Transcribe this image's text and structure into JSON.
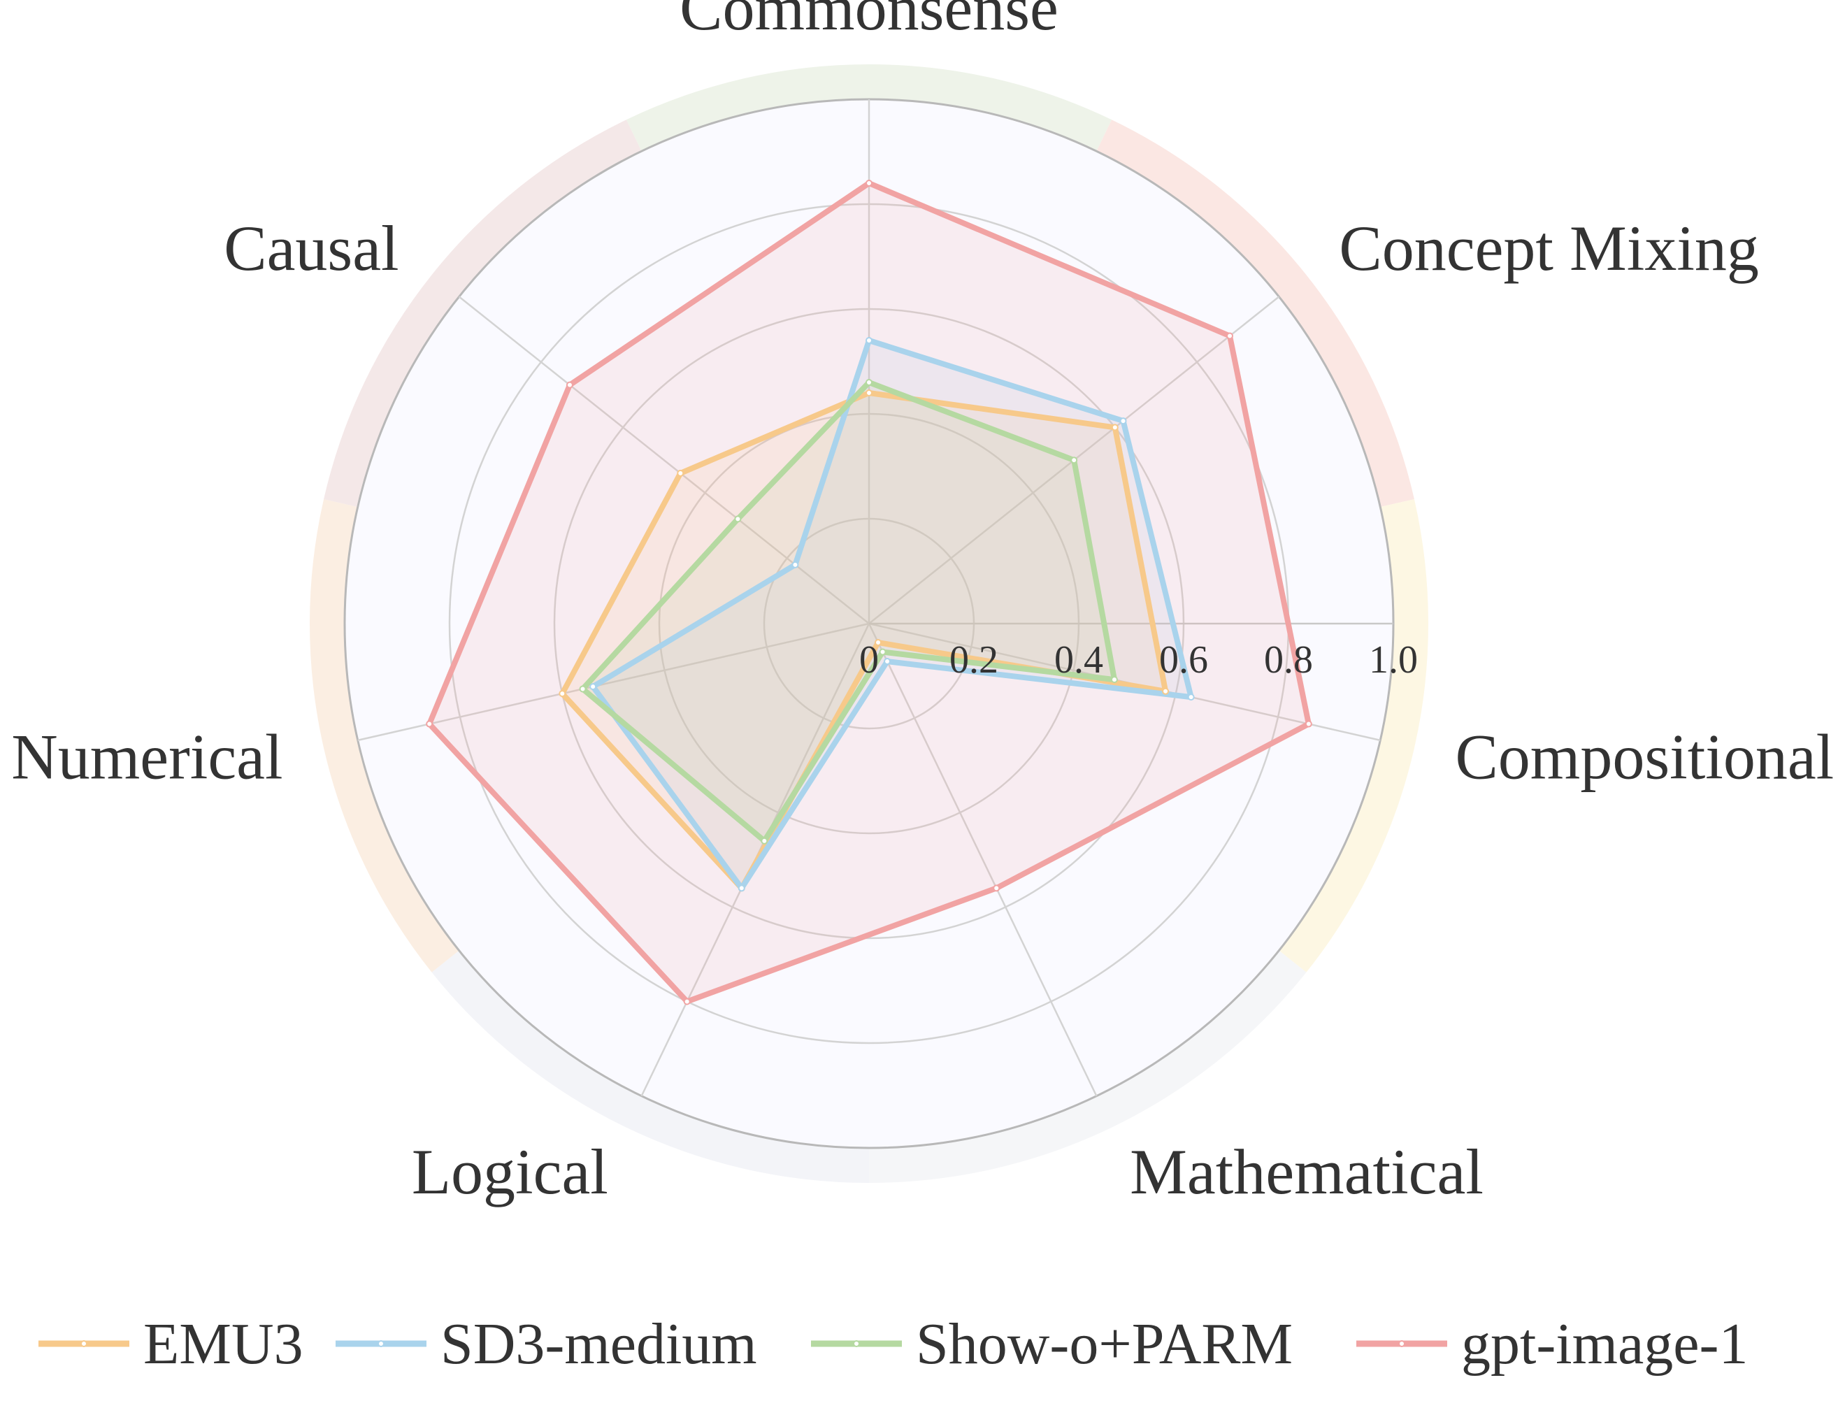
{
  "chart_data": {
    "type": "radar",
    "title": "",
    "axes": [
      "Commonsense",
      "Concept Mixing",
      "Compositional",
      "Mathematical",
      "Logical",
      "Numerical",
      "Causal"
    ],
    "range": [
      0,
      1.0
    ],
    "ticks": [
      "0",
      "0.2",
      "0.4",
      "0.6",
      "0.8",
      "1.0"
    ],
    "tick_values": [
      0,
      0.2,
      0.4,
      0.6,
      0.8,
      1.0
    ],
    "grid": true,
    "legend_position": "bottom",
    "series": [
      {
        "name": "EMU3",
        "color": "#f7c98a",
        "values": [
          0.44,
          0.6,
          0.58,
          0.04,
          0.56,
          0.6,
          0.46
        ]
      },
      {
        "name": "SD3-medium",
        "color": "#a9d3ec",
        "values": [
          0.54,
          0.62,
          0.63,
          0.08,
          0.56,
          0.54,
          0.18
        ]
      },
      {
        "name": "Show-o+PARM",
        "color": "#b5d9a1",
        "values": [
          0.46,
          0.5,
          0.48,
          0.06,
          0.46,
          0.56,
          0.32
        ]
      },
      {
        "name": "gpt-image-1",
        "color": "#f1a3a3",
        "values": [
          0.84,
          0.88,
          0.86,
          0.56,
          0.8,
          0.86,
          0.73
        ]
      }
    ]
  }
}
